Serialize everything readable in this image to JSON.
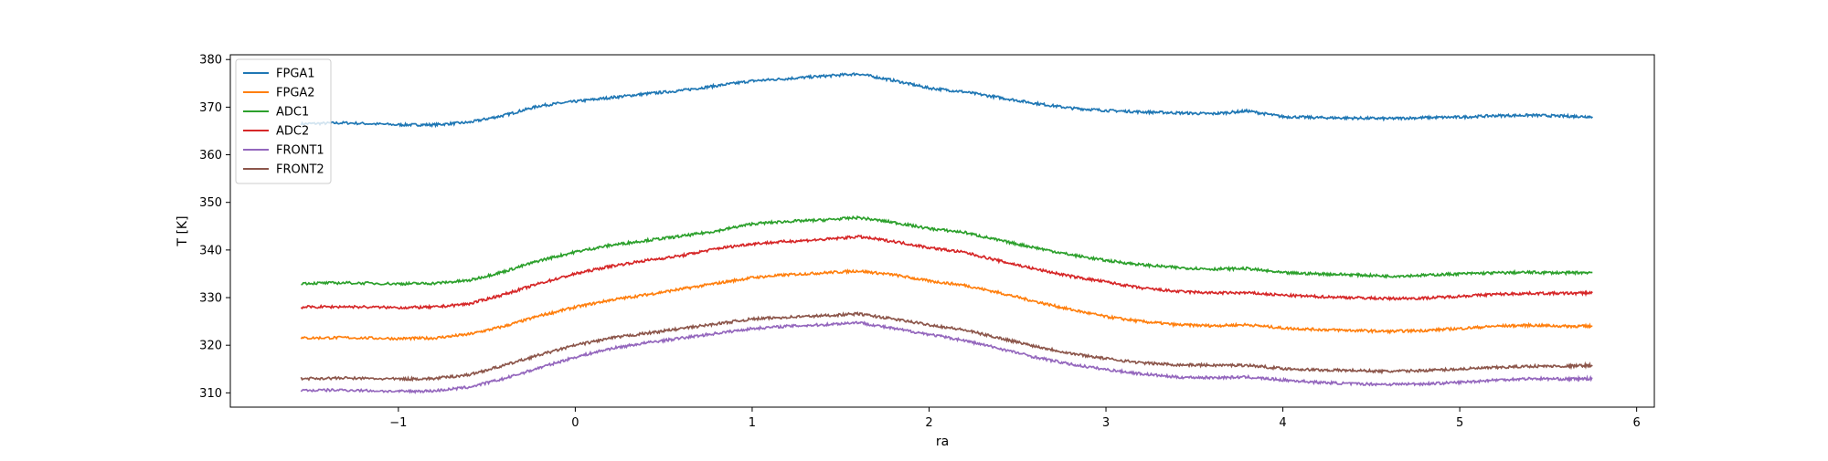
{
  "chart_data": {
    "type": "line",
    "title": "",
    "xlabel": "ra",
    "ylabel": "T [K]",
    "xlim": [
      -1.95,
      6.1
    ],
    "ylim": [
      307,
      381
    ],
    "xticks": [
      -1,
      0,
      1,
      2,
      3,
      4,
      5,
      6
    ],
    "xtick_labels": [
      "−1",
      "0",
      "1",
      "2",
      "3",
      "4",
      "5",
      "6"
    ],
    "yticks": [
      310,
      320,
      330,
      340,
      350,
      360,
      370,
      380
    ],
    "ytick_labels": [
      "310",
      "320",
      "330",
      "340",
      "350",
      "360",
      "370",
      "380"
    ],
    "grid": false,
    "legend_position": "top-left",
    "series": [
      {
        "name": "FPGA1",
        "color": "#1f77b4",
        "x": [
          -1.55,
          -1.3,
          -1.0,
          -0.8,
          -0.6,
          -0.4,
          -0.2,
          0.0,
          0.2,
          0.4,
          0.6,
          0.8,
          1.0,
          1.2,
          1.4,
          1.6,
          1.8,
          2.0,
          2.2,
          2.4,
          2.6,
          2.8,
          3.0,
          3.2,
          3.4,
          3.6,
          3.8,
          4.0,
          4.2,
          4.4,
          4.6,
          4.8,
          5.0,
          5.2,
          5.4,
          5.6,
          5.75
        ],
        "y": [
          366.5,
          366.7,
          366.3,
          366.3,
          366.8,
          368.3,
          370.3,
          371.2,
          372.0,
          372.8,
          373.5,
          374.5,
          375.5,
          376.0,
          376.5,
          377.0,
          375.6,
          374.0,
          373.2,
          372.0,
          370.8,
          369.8,
          369.3,
          369.0,
          368.8,
          368.6,
          369.2,
          368.0,
          367.8,
          367.7,
          367.6,
          367.8,
          367.9,
          368.2,
          368.3,
          368.1,
          368.0
        ]
      },
      {
        "name": "FPGA2",
        "color": "#ff7f0e",
        "x": [
          -1.55,
          -1.3,
          -1.0,
          -0.8,
          -0.6,
          -0.4,
          -0.2,
          0.0,
          0.2,
          0.4,
          0.6,
          0.8,
          1.0,
          1.2,
          1.4,
          1.6,
          1.8,
          2.0,
          2.2,
          2.4,
          2.6,
          2.8,
          3.0,
          3.2,
          3.4,
          3.6,
          3.8,
          4.0,
          4.2,
          4.4,
          4.6,
          4.8,
          5.0,
          5.2,
          5.4,
          5.6,
          5.75
        ],
        "y": [
          321.5,
          321.6,
          321.4,
          321.5,
          322.3,
          324.0,
          326.2,
          328.0,
          329.5,
          330.6,
          331.8,
          333.0,
          334.2,
          334.8,
          335.2,
          335.6,
          334.8,
          333.5,
          332.6,
          331.0,
          329.2,
          327.5,
          326.0,
          325.0,
          324.3,
          324.1,
          324.3,
          323.6,
          323.3,
          323.1,
          322.9,
          323.1,
          323.5,
          324.0,
          324.2,
          324.0,
          324.0
        ]
      },
      {
        "name": "ADC1",
        "color": "#2ca02c",
        "x": [
          -1.55,
          -1.3,
          -1.0,
          -0.8,
          -0.6,
          -0.4,
          -0.2,
          0.0,
          0.2,
          0.4,
          0.6,
          0.8,
          1.0,
          1.2,
          1.4,
          1.6,
          1.8,
          2.0,
          2.2,
          2.4,
          2.6,
          2.8,
          3.0,
          3.2,
          3.4,
          3.6,
          3.8,
          4.0,
          4.2,
          4.4,
          4.6,
          4.8,
          5.0,
          5.2,
          5.4,
          5.6,
          5.75
        ],
        "y": [
          333.0,
          333.1,
          332.9,
          333.0,
          333.6,
          335.5,
          337.8,
          339.6,
          341.0,
          342.0,
          342.9,
          344.0,
          345.5,
          346.0,
          346.3,
          346.8,
          345.8,
          344.5,
          343.7,
          342.0,
          340.5,
          339.0,
          337.8,
          336.9,
          336.3,
          336.0,
          336.1,
          335.2,
          335.0,
          334.8,
          334.5,
          334.7,
          335.0,
          335.2,
          335.3,
          335.2,
          335.3
        ]
      },
      {
        "name": "ADC2",
        "color": "#d62728",
        "x": [
          -1.55,
          -1.3,
          -1.0,
          -0.8,
          -0.6,
          -0.4,
          -0.2,
          0.0,
          0.2,
          0.4,
          0.6,
          0.8,
          1.0,
          1.2,
          1.4,
          1.6,
          1.8,
          2.0,
          2.2,
          2.4,
          2.6,
          2.8,
          3.0,
          3.2,
          3.4,
          3.6,
          3.8,
          4.0,
          4.2,
          4.4,
          4.6,
          4.8,
          5.0,
          5.2,
          5.4,
          5.6,
          5.75
        ],
        "y": [
          328.0,
          328.1,
          327.9,
          328.0,
          328.7,
          330.7,
          333.0,
          335.0,
          336.6,
          337.8,
          338.8,
          340.3,
          341.3,
          341.8,
          342.2,
          342.8,
          341.8,
          340.5,
          339.5,
          337.7,
          336.0,
          334.5,
          333.3,
          332.0,
          331.3,
          331.0,
          331.0,
          330.5,
          330.2,
          330.0,
          329.8,
          329.9,
          330.3,
          330.7,
          330.9,
          330.9,
          331.0
        ]
      },
      {
        "name": "FRONT1",
        "color": "#9467bd",
        "x": [
          -1.55,
          -1.3,
          -1.0,
          -0.8,
          -0.6,
          -0.4,
          -0.2,
          0.0,
          0.2,
          0.4,
          0.6,
          0.8,
          1.0,
          1.2,
          1.4,
          1.6,
          1.8,
          2.0,
          2.2,
          2.4,
          2.6,
          2.8,
          3.0,
          3.2,
          3.4,
          3.6,
          3.8,
          4.0,
          4.2,
          4.4,
          4.6,
          4.8,
          5.0,
          5.2,
          5.4,
          5.6,
          5.75
        ],
        "y": [
          310.5,
          310.6,
          310.3,
          310.4,
          311.2,
          313.0,
          315.3,
          317.5,
          319.3,
          320.5,
          321.5,
          322.5,
          323.5,
          324.0,
          324.3,
          324.8,
          323.5,
          322.3,
          321.0,
          319.3,
          317.5,
          316.0,
          314.9,
          314.0,
          313.3,
          313.2,
          313.3,
          312.7,
          312.2,
          311.9,
          311.8,
          311.9,
          312.2,
          312.7,
          313.0,
          312.9,
          313.0
        ]
      },
      {
        "name": "FRONT2",
        "color": "#8c564b",
        "x": [
          -1.55,
          -1.3,
          -1.0,
          -0.8,
          -0.6,
          -0.4,
          -0.2,
          0.0,
          0.2,
          0.4,
          0.6,
          0.8,
          1.0,
          1.2,
          1.4,
          1.6,
          1.8,
          2.0,
          2.2,
          2.4,
          2.6,
          2.8,
          3.0,
          3.2,
          3.4,
          3.6,
          3.8,
          4.0,
          4.2,
          4.4,
          4.6,
          4.8,
          5.0,
          5.2,
          5.4,
          5.6,
          5.75
        ],
        "y": [
          313.0,
          313.1,
          312.9,
          313.0,
          313.8,
          315.8,
          318.0,
          320.0,
          321.5,
          322.5,
          323.5,
          324.5,
          325.5,
          325.9,
          326.2,
          326.6,
          325.5,
          324.3,
          323.2,
          321.5,
          319.8,
          318.3,
          317.2,
          316.3,
          315.9,
          315.8,
          315.8,
          315.1,
          314.8,
          314.7,
          314.5,
          314.7,
          315.0,
          315.3,
          315.6,
          315.6,
          315.8
        ]
      }
    ]
  }
}
